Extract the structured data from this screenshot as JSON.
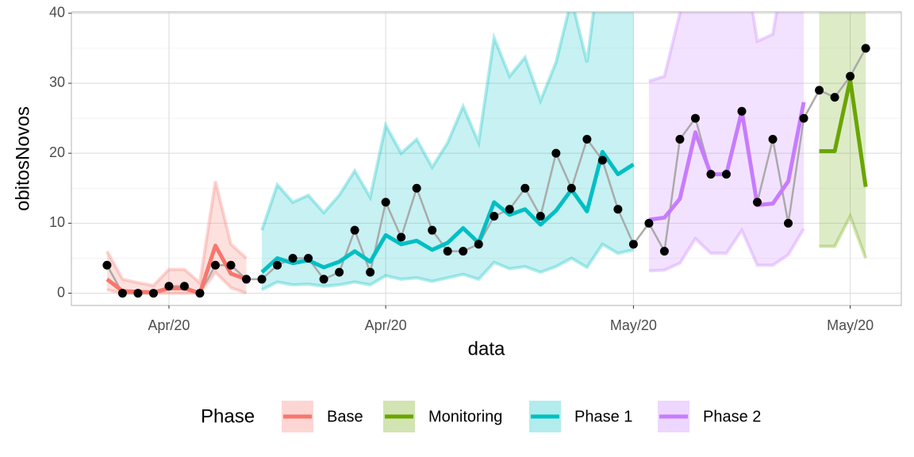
{
  "chart_data": {
    "type": "line",
    "x_label": "data",
    "y_label": "obitosNovos",
    "legend_title": "Phase",
    "legend_position": "bottom",
    "grid": true,
    "categories": [
      null,
      null,
      null,
      null,
      null,
      null,
      null,
      null,
      null,
      null,
      null,
      null,
      null,
      null,
      null,
      null,
      null,
      null,
      null,
      null,
      null,
      null,
      null,
      null,
      null,
      null,
      null,
      null,
      null,
      null,
      null,
      null,
      null,
      null,
      null,
      null,
      null,
      null,
      null,
      null,
      null,
      null,
      null,
      null,
      null,
      null,
      null,
      null,
      null,
      null
    ],
    "xlim": [
      -2.3,
      51.3
    ],
    "xticks": [
      {
        "value": 4,
        "label": "Apr/20"
      },
      {
        "value": 18,
        "label": "Apr/20"
      },
      {
        "value": 34,
        "label": "May/20"
      },
      {
        "value": 48,
        "label": "May/20"
      }
    ],
    "ylim": [
      -1.75,
      40.2
    ],
    "yticks": [
      0,
      10,
      20,
      30,
      40
    ],
    "observed": {
      "color": "#000000",
      "line_color": "#aaaaaa",
      "values": [
        4,
        0,
        0,
        0,
        1,
        1,
        0,
        4,
        4,
        2,
        2,
        4,
        5,
        5,
        2,
        3,
        9,
        3,
        13,
        8,
        15,
        9,
        6,
        6,
        7,
        11,
        12,
        15,
        11,
        20,
        15,
        22,
        19,
        12,
        7,
        10,
        6,
        22,
        25,
        17,
        17,
        26,
        13,
        22,
        10,
        25,
        29,
        28,
        31,
        35
      ]
    },
    "series": [
      {
        "name": "Base",
        "color": "#f8766d",
        "values": [
          2,
          0.3,
          0.2,
          0.1,
          0.7,
          0.7,
          0,
          6.8,
          2.8,
          2,
          null,
          null,
          null,
          null,
          null,
          null,
          null,
          null,
          null,
          null,
          null,
          null,
          null,
          null,
          null,
          null,
          null,
          null,
          null,
          null,
          null,
          null,
          null,
          null,
          null,
          null,
          null,
          null,
          null,
          null,
          null,
          null,
          null,
          null,
          null,
          null,
          null,
          null,
          null,
          null
        ],
        "upper": [
          6,
          2,
          1.5,
          1.1,
          3.4,
          3.4,
          1.5,
          16,
          7,
          5,
          null,
          null,
          null,
          null,
          null,
          null,
          null,
          null,
          null,
          null,
          null,
          null,
          null,
          null,
          null,
          null,
          null,
          null,
          null,
          null,
          null,
          null,
          null,
          null,
          null,
          null,
          null,
          null,
          null,
          null,
          null,
          null,
          null,
          null,
          null,
          null,
          null,
          null,
          null,
          null
        ],
        "lower": [
          0.5,
          0,
          0,
          0,
          0,
          0,
          0,
          3,
          0.8,
          0,
          null,
          null,
          null,
          null,
          null,
          null,
          null,
          null,
          null,
          null,
          null,
          null,
          null,
          null,
          null,
          null,
          null,
          null,
          null,
          null,
          null,
          null,
          null,
          null,
          null,
          null,
          null,
          null,
          null,
          null,
          null,
          null,
          null,
          null,
          null,
          null,
          null,
          null,
          null,
          null
        ]
      },
      {
        "name": "Monitoring",
        "color": "#6aa500",
        "values": [
          null,
          null,
          null,
          null,
          null,
          null,
          null,
          null,
          null,
          null,
          null,
          null,
          null,
          null,
          null,
          null,
          null,
          null,
          null,
          null,
          null,
          null,
          null,
          null,
          null,
          null,
          null,
          null,
          null,
          null,
          null,
          null,
          null,
          null,
          null,
          null,
          null,
          null,
          null,
          null,
          null,
          null,
          null,
          null,
          null,
          null,
          20.3,
          20.3,
          30.5,
          15.2
        ],
        "upper": [
          null,
          null,
          null,
          null,
          null,
          null,
          null,
          null,
          null,
          null,
          null,
          null,
          null,
          null,
          null,
          null,
          null,
          null,
          null,
          null,
          null,
          null,
          null,
          null,
          null,
          null,
          null,
          null,
          null,
          null,
          null,
          null,
          null,
          null,
          null,
          null,
          null,
          null,
          null,
          null,
          null,
          null,
          null,
          null,
          null,
          null,
          50,
          50,
          50,
          50
        ],
        "lower": [
          null,
          null,
          null,
          null,
          null,
          null,
          null,
          null,
          null,
          null,
          null,
          null,
          null,
          null,
          null,
          null,
          null,
          null,
          null,
          null,
          null,
          null,
          null,
          null,
          null,
          null,
          null,
          null,
          null,
          null,
          null,
          null,
          null,
          null,
          null,
          null,
          null,
          null,
          null,
          null,
          null,
          null,
          null,
          null,
          null,
          null,
          6.7,
          6.7,
          11,
          5
        ]
      },
      {
        "name": "Phase 1",
        "color": "#00bfc4",
        "values": [
          null,
          null,
          null,
          null,
          null,
          null,
          null,
          null,
          null,
          null,
          3,
          5,
          4.3,
          4.7,
          3.7,
          4.5,
          6,
          4.5,
          8.3,
          7,
          7.5,
          6.2,
          7.2,
          9.3,
          7.2,
          13,
          11.2,
          12,
          9.8,
          11.8,
          14.8,
          11.7,
          20.2,
          17,
          18.4,
          null,
          null,
          null,
          null,
          null,
          null,
          null,
          null,
          null,
          null,
          null,
          null,
          null,
          null,
          null
        ],
        "upper": [
          null,
          null,
          null,
          null,
          null,
          null,
          null,
          null,
          null,
          null,
          9,
          15.5,
          13,
          14,
          11.5,
          14,
          17.5,
          13.7,
          24,
          20,
          22,
          18,
          21.5,
          26.7,
          21.5,
          36.5,
          31,
          33.7,
          27.5,
          33,
          42,
          33,
          50,
          50,
          50,
          null,
          null,
          null,
          null,
          null,
          null,
          null,
          null,
          null,
          null,
          null,
          null,
          null,
          null,
          null
        ],
        "lower": [
          null,
          null,
          null,
          null,
          null,
          null,
          null,
          null,
          null,
          null,
          0.5,
          1.6,
          1.2,
          1.3,
          1,
          1.2,
          1.6,
          1.2,
          2.5,
          2,
          2.2,
          1.7,
          2.2,
          2.7,
          2,
          4.4,
          3.5,
          3.8,
          3,
          3.8,
          5,
          3.7,
          7,
          5.7,
          6.2,
          null,
          null,
          null,
          null,
          null,
          null,
          null,
          null,
          null,
          null,
          null,
          null,
          null,
          null,
          null
        ]
      },
      {
        "name": "Phase 2",
        "color": "#c77cff",
        "values": [
          null,
          null,
          null,
          null,
          null,
          null,
          null,
          null,
          null,
          null,
          null,
          null,
          null,
          null,
          null,
          null,
          null,
          null,
          null,
          null,
          null,
          null,
          null,
          null,
          null,
          null,
          null,
          null,
          null,
          null,
          null,
          null,
          null,
          null,
          null,
          10.5,
          10.8,
          13.5,
          23,
          17,
          17,
          26,
          12.6,
          12.8,
          16,
          27.3,
          null,
          null,
          null,
          null
        ],
        "upper": [
          null,
          null,
          null,
          null,
          null,
          null,
          null,
          null,
          null,
          null,
          null,
          null,
          null,
          null,
          null,
          null,
          null,
          null,
          null,
          null,
          null,
          null,
          null,
          null,
          null,
          null,
          null,
          null,
          null,
          null,
          null,
          null,
          null,
          null,
          null,
          30.3,
          31,
          40,
          50,
          50,
          50,
          50,
          36,
          37,
          50,
          50,
          null,
          null,
          null,
          null
        ],
        "lower": [
          null,
          null,
          null,
          null,
          null,
          null,
          null,
          null,
          null,
          null,
          null,
          null,
          null,
          null,
          null,
          null,
          null,
          null,
          null,
          null,
          null,
          null,
          null,
          null,
          null,
          null,
          null,
          null,
          null,
          null,
          null,
          null,
          null,
          null,
          null,
          3.2,
          3.3,
          4.3,
          7.8,
          5.7,
          5.7,
          9,
          4,
          4,
          5.5,
          9.2,
          null,
          null,
          null,
          null
        ]
      }
    ]
  }
}
